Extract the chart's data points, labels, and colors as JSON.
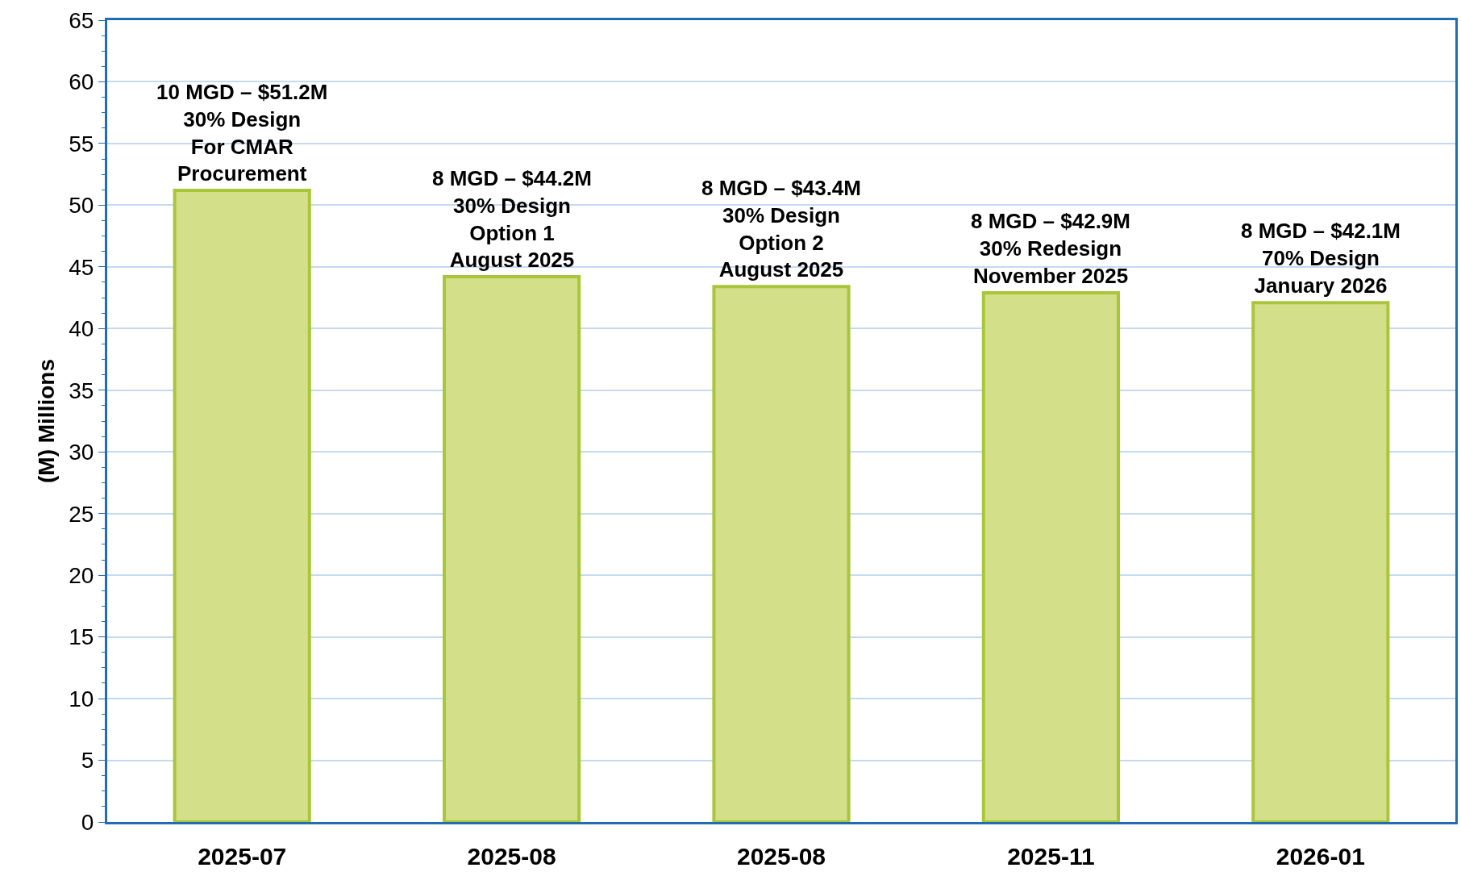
{
  "chart_data": {
    "type": "bar",
    "ylabel": "(M) Millions",
    "categories": [
      "2025-07",
      "2025-08",
      "2025-08",
      "2025-11",
      "2026-01"
    ],
    "values": [
      51.2,
      44.2,
      43.4,
      42.9,
      42.1
    ],
    "annotations": [
      "10 MGD – $51.2M\n30% Design\nFor CMAR\nProcurement",
      "8 MGD – $44.2M\n30% Design\nOption 1\nAugust 2025",
      "8 MGD – $43.4M\n30% Design\nOption 2\nAugust 2025",
      "8 MGD – $42.9M\n30% Redesign\nNovember 2025",
      "8 MGD – $42.1M\n70% Design\nJanuary 2026"
    ],
    "color": "#d4df8a",
    "ylim": [
      0,
      65
    ],
    "yticks": [
      0,
      5,
      10,
      15,
      20,
      25,
      30,
      35,
      40,
      45,
      50,
      55,
      60,
      65
    ],
    "grid": "y"
  }
}
